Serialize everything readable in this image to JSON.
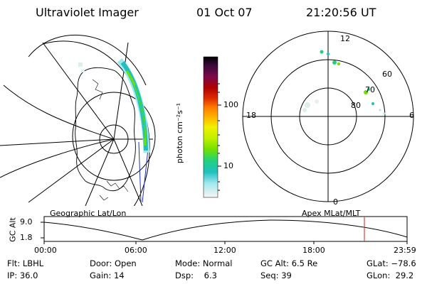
{
  "header": {
    "instrument": "Ultraviolet Imager",
    "date": "01 Oct 07",
    "time": "21:20:56 UT"
  },
  "panels": {
    "geographic_label": "Geographic Lat/Lon",
    "apex_label": "Apex  MLat/MLT"
  },
  "colorbar": {
    "unit_label": "photon cm⁻²s⁻¹",
    "ticks": [
      "100",
      "10"
    ],
    "colors": [
      "#000000",
      "#3a0a3a",
      "#7a0a4a",
      "#b00000",
      "#e03000",
      "#ff7a00",
      "#ffb400",
      "#f0f000",
      "#c0f000",
      "#70e000",
      "#20d080",
      "#20c0c0",
      "#a0e8f0",
      "#d8f0f0",
      "#f4f4f4"
    ]
  },
  "polar_plot": {
    "mlt_labels": {
      "top": "12",
      "left": "18",
      "right": "6",
      "bottom": "0"
    },
    "mlat_labels": [
      "60",
      "70",
      "80"
    ]
  },
  "altitude_plot": {
    "ylabel": "GC Alt",
    "yticks": [
      "9.0",
      "1.8"
    ],
    "xticks": [
      "00:00",
      "06:00",
      "12:00",
      "18:00",
      "23:59"
    ],
    "marker_color": "#d02020"
  },
  "status": {
    "filter": "Flt: LBHL",
    "ip": "IP: 36.0",
    "door": "Door: Open",
    "gain": "Gain: 14",
    "mode": "Mode: Normal",
    "dsp": "Dsp:    6.3",
    "gc_alt": "GC Alt: 6.5 Re",
    "seq": "Seq: 39",
    "glat": "GLat: −78.6",
    "glon": "GLon:  29.2"
  }
}
